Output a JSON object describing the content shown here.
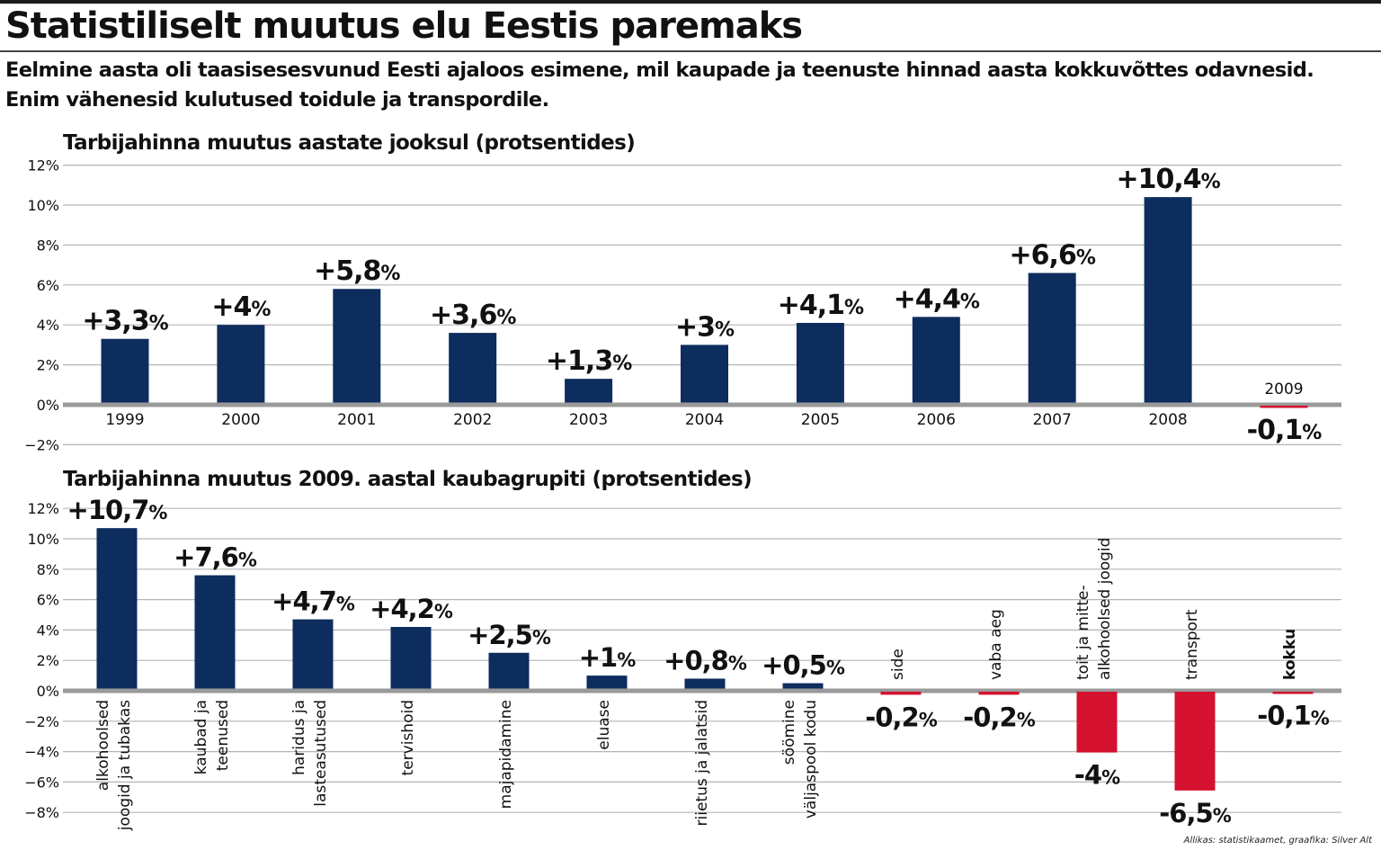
{
  "headline": "Statistiliselt muutus elu Eestis paremaks",
  "subtitle": {
    "line1": "Eelmine aasta oli taasisesesvunud Eesti ajaloos esimene, mil kaupade ja teenuste hinnad aasta kokkuvõttes odavnesid.",
    "line2": "Enim vähenesid kulutused toidule ja transpordile."
  },
  "source": "Allikas: statistikaamet, graafika: Silver Alt",
  "colors": {
    "positive": "#0d2d5e",
    "negative": "#d4112e",
    "grid": "#b5b5b5",
    "zero_line": "#9a9a9a"
  },
  "chart_data": [
    {
      "type": "bar",
      "title": "Tarbijahinna muutus aastate jooksul (protsentides)",
      "xlabel": "",
      "ylabel": "",
      "ylim": [
        -2,
        12
      ],
      "yticks": [
        12,
        10,
        8,
        6,
        4,
        2,
        0,
        -2
      ],
      "ytick_labels": [
        "12%",
        "10%",
        "8%",
        "6%",
        "4%",
        "2%",
        "0%",
        "−2%"
      ],
      "grid": true,
      "categories": [
        "1999",
        "2000",
        "2001",
        "2002",
        "2003",
        "2004",
        "2005",
        "2006",
        "2007",
        "2008",
        "2009"
      ],
      "values": [
        3.3,
        4,
        5.8,
        3.6,
        1.3,
        3,
        4.1,
        4.4,
        6.6,
        10.4,
        -0.1
      ],
      "value_labels": [
        "+3,3",
        "+4",
        "+5,8",
        "+3,6",
        "+1,3",
        "+3",
        "+4,1",
        "+4,4",
        "+6,6",
        "+10,4",
        "-0,1"
      ],
      "value_suffix": "%"
    },
    {
      "type": "bar",
      "title": "Tarbijahinna muutus 2009. aastal kaubagrupiti (protsentides)",
      "xlabel": "",
      "ylabel": "",
      "ylim": [
        -8,
        12
      ],
      "yticks": [
        12,
        10,
        8,
        6,
        4,
        2,
        0,
        -2,
        -4,
        -6,
        -8
      ],
      "ytick_labels": [
        "12%",
        "10%",
        "8%",
        "6%",
        "4%",
        "2%",
        "0%",
        "−2%",
        "−4%",
        "−6%",
        "−8%"
      ],
      "grid": true,
      "categories": [
        [
          "alkohoolsed",
          "joogid ja tubakas"
        ],
        [
          "kaubad ja",
          "teenused"
        ],
        [
          "haridus ja",
          "lasteasutused"
        ],
        [
          "tervishoid"
        ],
        [
          "majapidamine"
        ],
        [
          "eluase"
        ],
        [
          "riietus ja jalatsid"
        ],
        [
          "söömine",
          "väljaspool kodu"
        ],
        [
          "side"
        ],
        [
          "vaba aeg"
        ],
        [
          "toit ja mitte-",
          "alkohoolsed joogid"
        ],
        [
          "transport"
        ],
        [
          "kokku"
        ]
      ],
      "values": [
        10.7,
        7.6,
        4.7,
        4.2,
        2.5,
        1,
        0.8,
        0.5,
        -0.2,
        -0.2,
        -4,
        -6.5,
        -0.1
      ],
      "value_labels": [
        "+10,7",
        "+7,6",
        "+4,7",
        "+4,2",
        "+2,5",
        "+1",
        "+0,8",
        "+0,5",
        "-0,2",
        "-0,2",
        "-4",
        "-6,5",
        "-0,1"
      ],
      "value_suffix": "%"
    }
  ]
}
